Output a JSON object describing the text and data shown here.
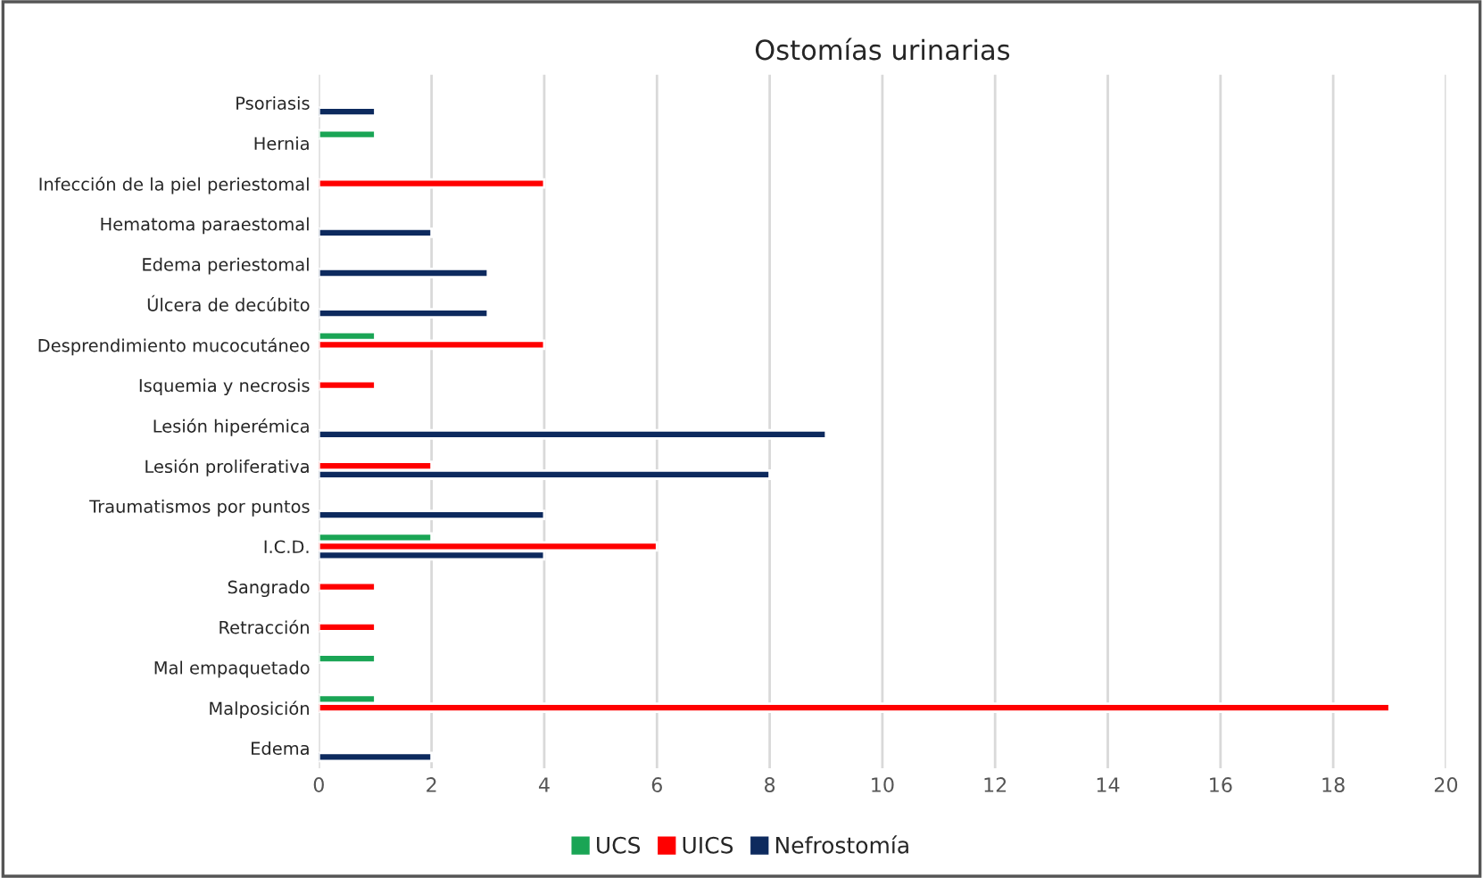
{
  "chart_data": {
    "type": "bar",
    "orientation": "horizontal",
    "title": "Ostomías urinarias",
    "categories": [
      "Psoriasis",
      "Hernia",
      "Infección de la piel periestomal",
      "Hematoma paraestomal",
      "Edema periestomal",
      "Úlcera de decúbito",
      "Desprendimiento mucocutáneo",
      "Isquemia y necrosis",
      "Lesión hiperémica",
      "Lesión proliferativa",
      "Traumatismos por puntos",
      "I.C.D.",
      "Sangrado",
      "Retracción",
      "Mal empaquetado",
      "Malposición",
      "Edema"
    ],
    "series": [
      {
        "name": "UCS",
        "color": "#1aa555",
        "values": [
          null,
          1,
          null,
          null,
          null,
          null,
          1,
          null,
          null,
          null,
          null,
          2,
          null,
          null,
          1,
          1,
          null
        ]
      },
      {
        "name": "UICS",
        "color": "#ff0000",
        "values": [
          null,
          null,
          4,
          null,
          null,
          null,
          4,
          1,
          null,
          2,
          null,
          6,
          1,
          1,
          null,
          19,
          null
        ]
      },
      {
        "name": "Nefrostomía",
        "color": "#0d2a5e",
        "values": [
          1,
          null,
          null,
          2,
          3,
          3,
          null,
          null,
          9,
          8,
          4,
          4,
          null,
          null,
          null,
          null,
          2
        ]
      }
    ],
    "xlim": [
      0,
      20
    ],
    "xticks": [
      0,
      2,
      4,
      6,
      8,
      10,
      12,
      14,
      16,
      18,
      20
    ],
    "grid": "x",
    "legend": "bottom"
  }
}
